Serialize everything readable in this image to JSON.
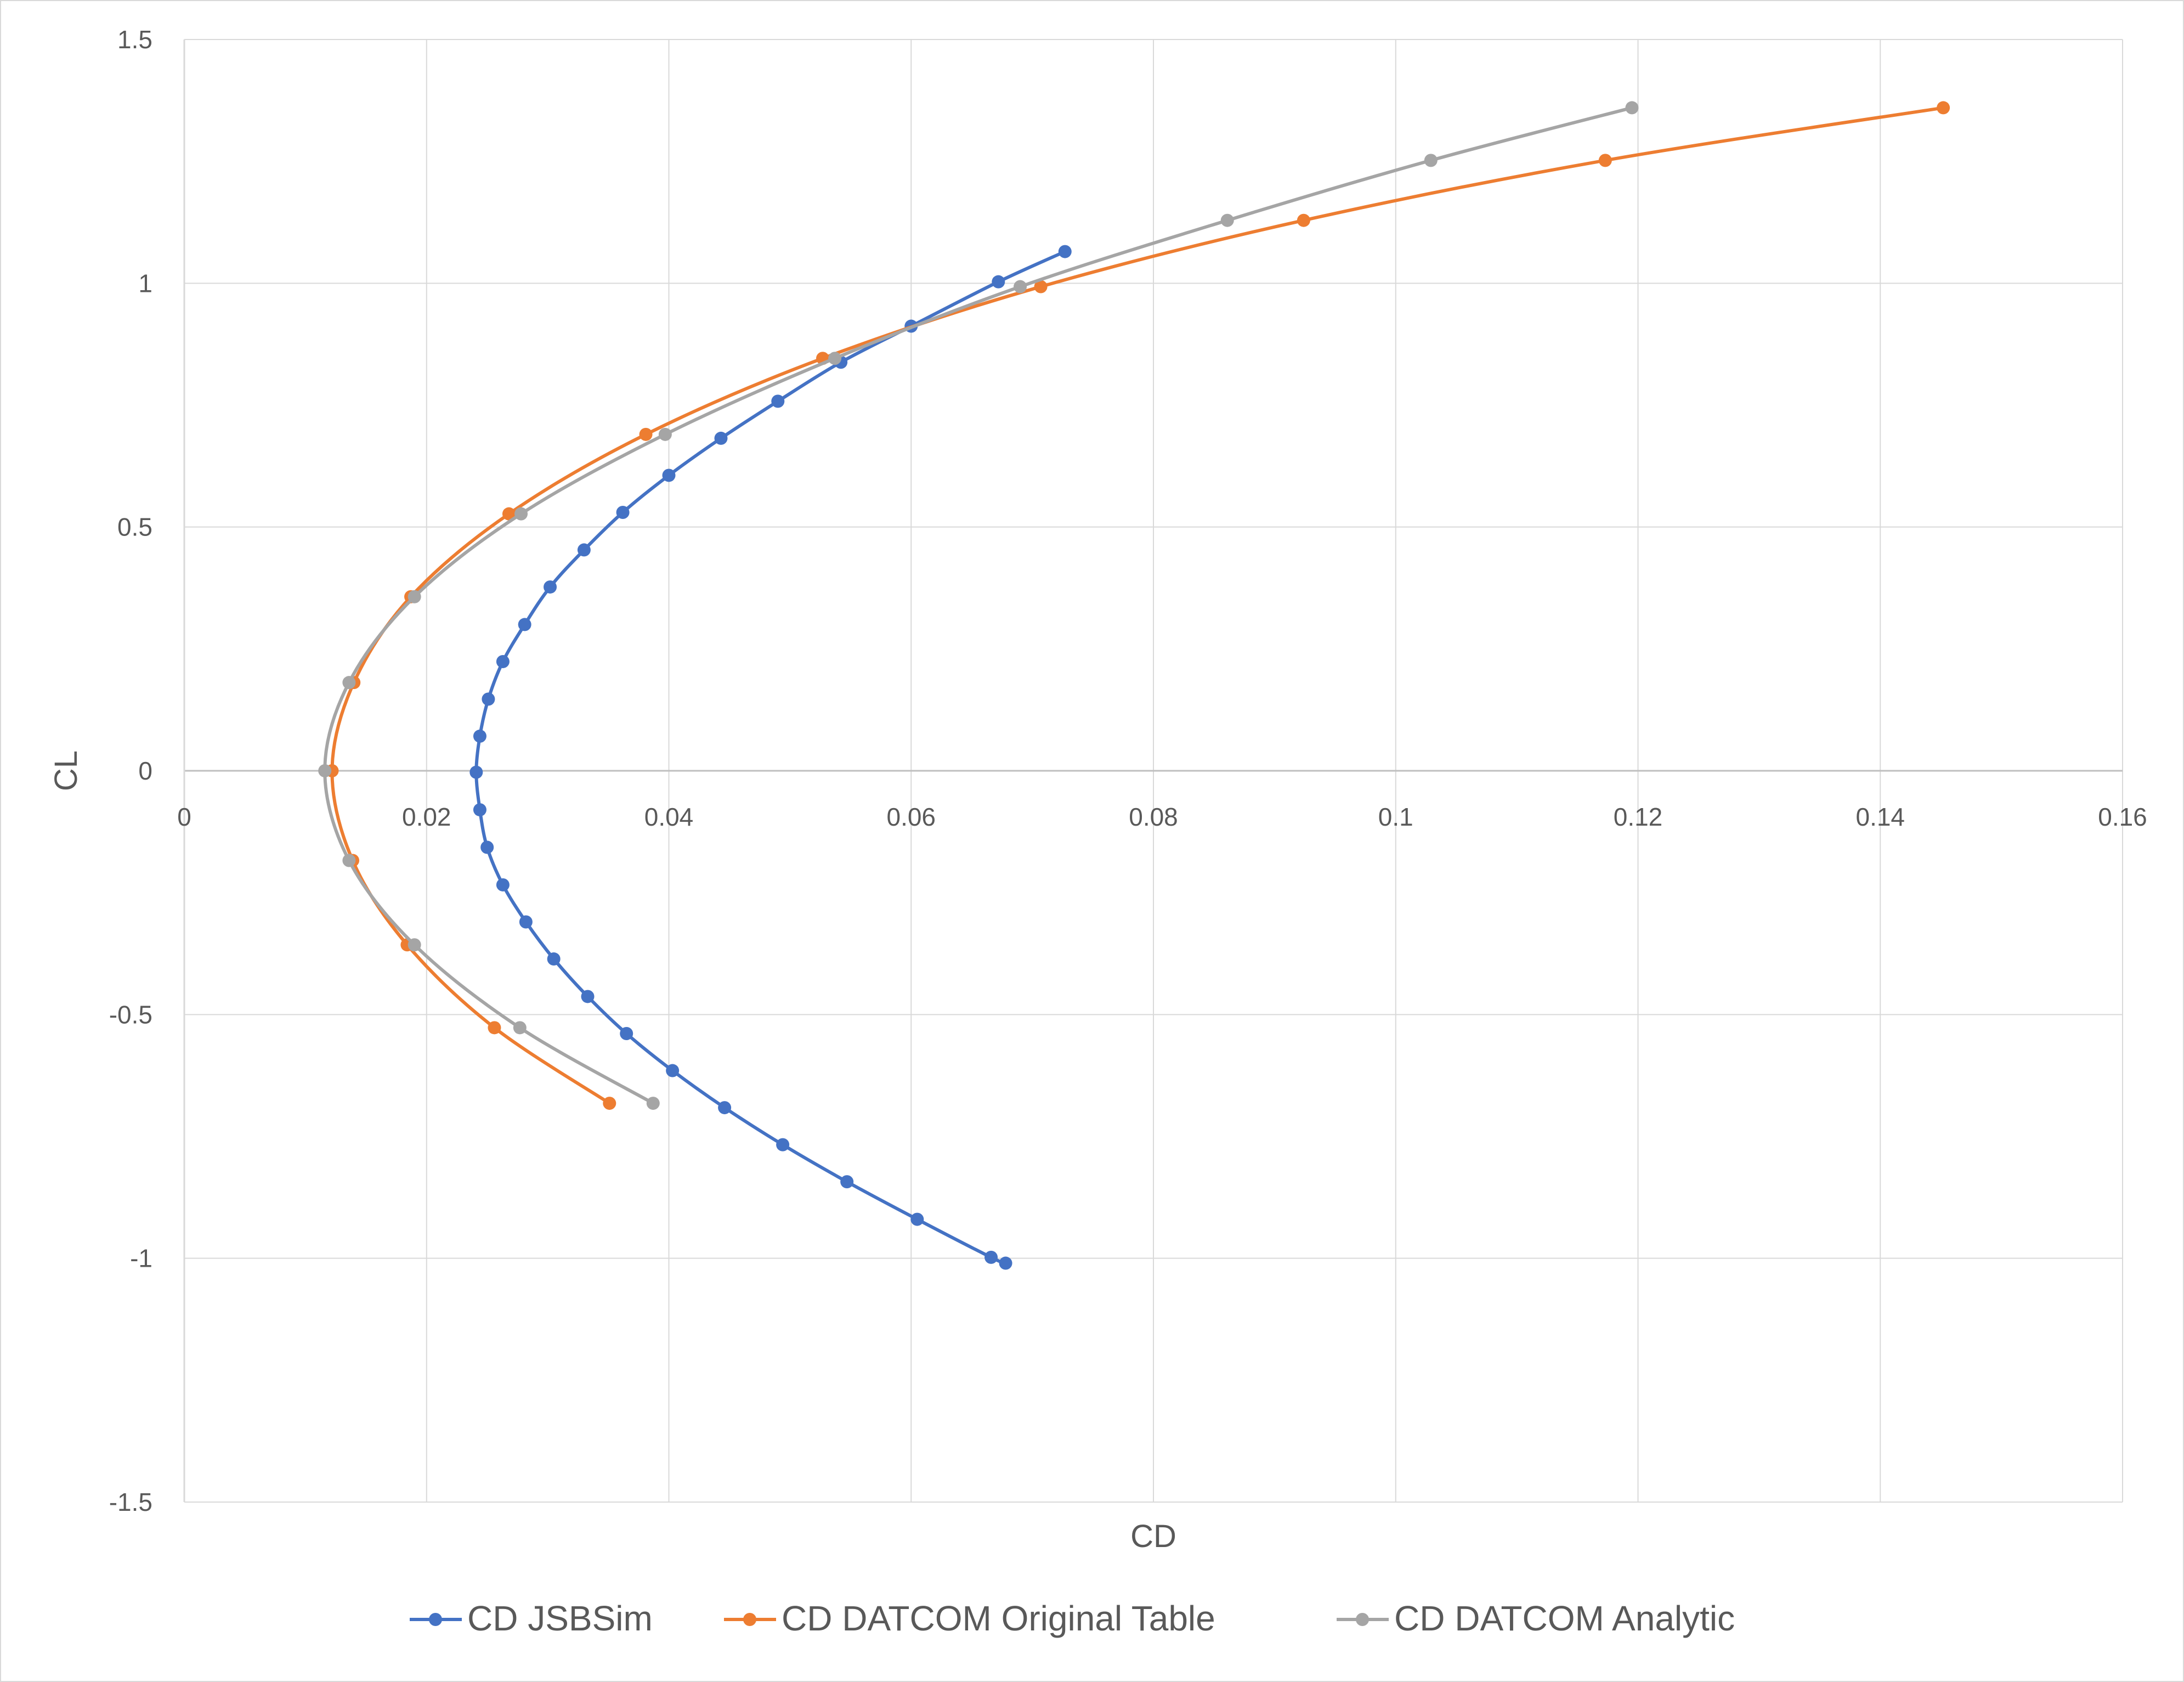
{
  "chart_data": {
    "type": "scatter",
    "title": "",
    "xlabel": "CD",
    "ylabel": "CL",
    "xlim": [
      0,
      0.16
    ],
    "ylim": [
      -1.5,
      1.5
    ],
    "x_ticks": [
      "0",
      "0.02",
      "0.04",
      "0.06",
      "0.08",
      "0.1",
      "0.12",
      "0.14",
      "0.16"
    ],
    "y_ticks": [
      "1.5",
      "1",
      "0.5",
      "0",
      "-0.5",
      "-1",
      "-1.5"
    ],
    "grid": true,
    "legend_position": "bottom",
    "series": [
      {
        "name": "CD JSBSim",
        "color": "#4472C4",
        "points": [
          [
            0.0727,
            1.065
          ],
          [
            0.0672,
            1.003
          ],
          [
            0.06,
            0.912
          ],
          [
            0.0542,
            0.838
          ],
          [
            0.049,
            0.758
          ],
          [
            0.0443,
            0.682
          ],
          [
            0.04,
            0.606
          ],
          [
            0.0362,
            0.53
          ],
          [
            0.033,
            0.453
          ],
          [
            0.0302,
            0.377
          ],
          [
            0.0281,
            0.3
          ],
          [
            0.0263,
            0.224
          ],
          [
            0.0251,
            0.147
          ],
          [
            0.0244,
            0.071
          ],
          [
            0.0241,
            -0.003
          ],
          [
            0.0244,
            -0.08
          ],
          [
            0.025,
            -0.157
          ],
          [
            0.0263,
            -0.234
          ],
          [
            0.0282,
            -0.31
          ],
          [
            0.0305,
            -0.386
          ],
          [
            0.0333,
            -0.463
          ],
          [
            0.0365,
            -0.539
          ],
          [
            0.0403,
            -0.615
          ],
          [
            0.0446,
            -0.691
          ],
          [
            0.0494,
            -0.767
          ],
          [
            0.0547,
            -0.843
          ],
          [
            0.0605,
            -0.92
          ],
          [
            0.0666,
            -0.998
          ],
          [
            0.0678,
            -1.01
          ]
        ]
      },
      {
        "name": "CD DATCOM Original Table",
        "color": "#ED7D31",
        "points": [
          [
            0.1452,
            1.36
          ],
          [
            0.1173,
            1.252
          ],
          [
            0.0924,
            1.129
          ],
          [
            0.0707,
            0.993
          ],
          [
            0.0527,
            0.846
          ],
          [
            0.0381,
            0.69
          ],
          [
            0.0268,
            0.527
          ],
          [
            0.0187,
            0.357
          ],
          [
            0.014,
            0.181
          ],
          [
            0.0122,
            0.0
          ],
          [
            0.0139,
            -0.184
          ],
          [
            0.0184,
            -0.357
          ],
          [
            0.0256,
            -0.527
          ],
          [
            0.0351,
            -0.682
          ]
        ]
      },
      {
        "name": "CD DATCOM Analytic",
        "color": "#A5A5A5",
        "points": [
          [
            0.1195,
            1.36
          ],
          [
            0.1029,
            1.252
          ],
          [
            0.0861,
            1.129
          ],
          [
            0.069,
            0.993
          ],
          [
            0.0537,
            0.846
          ],
          [
            0.0397,
            0.69
          ],
          [
            0.0278,
            0.527
          ],
          [
            0.019,
            0.357
          ],
          [
            0.0136,
            0.181
          ],
          [
            0.0116,
            0.0
          ],
          [
            0.0136,
            -0.184
          ],
          [
            0.019,
            -0.357
          ],
          [
            0.0277,
            -0.527
          ],
          [
            0.0387,
            -0.682
          ]
        ]
      }
    ]
  }
}
